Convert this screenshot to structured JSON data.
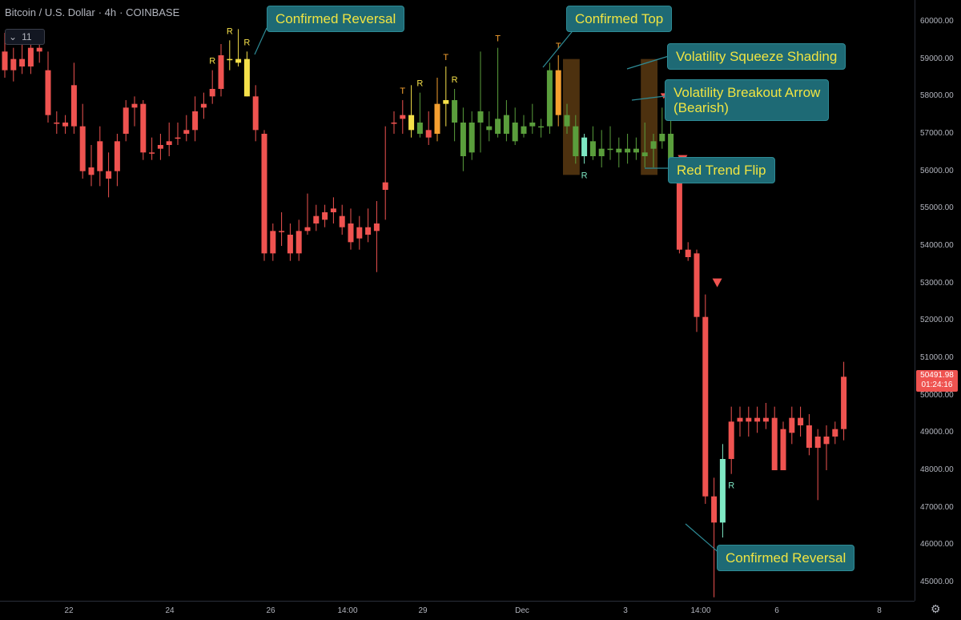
{
  "header": {
    "symbol": "Bitcoin / U.S. Dollar",
    "interval": "4h",
    "exchange": "COINBASE",
    "collapse_count": "11"
  },
  "price_axis": {
    "ticks": [
      "60000.00",
      "59000.00",
      "58000.00",
      "57000.00",
      "56000.00",
      "55000.00",
      "54000.00",
      "53000.00",
      "52000.00",
      "51000.00",
      "50000.00",
      "49000.00",
      "48000.00",
      "47000.00",
      "46000.00",
      "45000.00"
    ],
    "last_price": "50491.98",
    "countdown": "01:24:16"
  },
  "time_axis": {
    "ticks": [
      "22",
      "24",
      "26",
      "14:00",
      "29",
      "Dec",
      "3",
      "14:00",
      "6",
      "8"
    ]
  },
  "annotations": {
    "confirmed_reversal_top": "Confirmed Reversal",
    "confirmed_top": "Confirmed Top",
    "volatility_squeeze": "Volatility Squeeze Shading",
    "volatility_breakout_line1": "Volatility Breakout Arrow",
    "volatility_breakout_line2": "(Bearish)",
    "red_trend_flip": "Red Trend Flip",
    "confirmed_reversal_bottom": "Confirmed Reversal"
  },
  "colors": {
    "up": "#5a9e3c",
    "down": "#ef5350",
    "yellow": "#f5e04a",
    "orange": "#f5a030",
    "cyan": "#7ee8c4",
    "squeeze": "#5a3a12",
    "callout_bg": "#1e6a75",
    "callout_text": "#f0e442"
  },
  "chart_data": {
    "type": "candlestick",
    "title": "Bitcoin / U.S. Dollar",
    "interval": "4h",
    "ylim": [
      44600,
      60600
    ],
    "candles": [
      {
        "x": "22",
        "o": 59200,
        "h": 59700,
        "l": 58500,
        "c": 58700,
        "color": "down"
      },
      {
        "x": "",
        "o": 58700,
        "h": 59300,
        "l": 58400,
        "c": 59000,
        "color": "down"
      },
      {
        "x": "",
        "o": 59000,
        "h": 59400,
        "l": 58600,
        "c": 58800,
        "color": "down"
      },
      {
        "x": "",
        "o": 58800,
        "h": 59500,
        "l": 58600,
        "c": 59300,
        "color": "down"
      },
      {
        "x": "",
        "o": 59300,
        "h": 59600,
        "l": 58900,
        "c": 59200,
        "color": "down"
      },
      {
        "x": "",
        "o": 58700,
        "h": 59200,
        "l": 57300,
        "c": 57500,
        "color": "down"
      },
      {
        "x": "",
        "o": 57300,
        "h": 57600,
        "l": 57000,
        "c": 57300,
        "color": "down"
      },
      {
        "x": "",
        "o": 57300,
        "h": 57500,
        "l": 57000,
        "c": 57200,
        "color": "down"
      },
      {
        "x": "",
        "o": 58300,
        "h": 58900,
        "l": 57000,
        "c": 57200,
        "color": "down"
      },
      {
        "x": "",
        "o": 57200,
        "h": 57800,
        "l": 55800,
        "c": 56000,
        "color": "down"
      },
      {
        "x": "",
        "o": 56100,
        "h": 56700,
        "l": 55600,
        "c": 55900,
        "color": "down"
      },
      {
        "x": "",
        "o": 56800,
        "h": 57200,
        "l": 55600,
        "c": 56000,
        "color": "down"
      },
      {
        "x": "",
        "o": 56000,
        "h": 56500,
        "l": 55300,
        "c": 55800,
        "color": "down"
      },
      {
        "x": "",
        "o": 56800,
        "h": 57000,
        "l": 55600,
        "c": 56000,
        "color": "down"
      },
      {
        "x": "24",
        "o": 57700,
        "h": 57900,
        "l": 56800,
        "c": 57000,
        "color": "down"
      },
      {
        "x": "",
        "o": 57700,
        "h": 58000,
        "l": 57200,
        "c": 57800,
        "color": "down"
      },
      {
        "x": "",
        "o": 57800,
        "h": 57900,
        "l": 56300,
        "c": 56500,
        "color": "down"
      },
      {
        "x": "",
        "o": 56500,
        "h": 56900,
        "l": 56300,
        "c": 56500,
        "color": "down"
      },
      {
        "x": "",
        "o": 56600,
        "h": 57000,
        "l": 56300,
        "c": 56700,
        "color": "down"
      },
      {
        "x": "",
        "o": 56700,
        "h": 57300,
        "l": 56400,
        "c": 56800,
        "color": "down"
      },
      {
        "x": "",
        "o": 56900,
        "h": 57300,
        "l": 56700,
        "c": 56900,
        "color": "down"
      },
      {
        "x": "",
        "o": 57100,
        "h": 57500,
        "l": 56800,
        "c": 57000,
        "color": "down"
      },
      {
        "x": "",
        "o": 57600,
        "h": 58000,
        "l": 56800,
        "c": 57100,
        "color": "down"
      },
      {
        "x": "",
        "o": 57700,
        "h": 58100,
        "l": 57400,
        "c": 57800,
        "color": "down"
      },
      {
        "x": "",
        "o": 58200,
        "h": 58700,
        "l": 57800,
        "c": 58000,
        "color": "down"
      },
      {
        "x": "",
        "o": 59100,
        "h": 59400,
        "l": 58000,
        "c": 58200,
        "color": "down"
      },
      {
        "x": "",
        "o": 59000,
        "h": 59500,
        "l": 58700,
        "c": 59000,
        "color": "yellow"
      },
      {
        "x": "",
        "o": 59000,
        "h": 59800,
        "l": 58800,
        "c": 58900,
        "color": "yellow"
      },
      {
        "x": "26",
        "o": 59000,
        "h": 59200,
        "l": 58000,
        "c": 58000,
        "color": "yellow"
      },
      {
        "x": "",
        "o": 58000,
        "h": 58300,
        "l": 56800,
        "c": 57100,
        "color": "down"
      },
      {
        "x": "",
        "o": 57000,
        "h": 57100,
        "l": 53600,
        "c": 53800,
        "color": "down"
      },
      {
        "x": "",
        "o": 53800,
        "h": 54600,
        "l": 53600,
        "c": 54400,
        "color": "down"
      },
      {
        "x": "",
        "o": 54400,
        "h": 54900,
        "l": 54000,
        "c": 54400,
        "color": "down"
      },
      {
        "x": "",
        "o": 54300,
        "h": 54600,
        "l": 53600,
        "c": 53800,
        "color": "down"
      },
      {
        "x": "",
        "o": 54400,
        "h": 54700,
        "l": 53600,
        "c": 53800,
        "color": "down"
      },
      {
        "x": "",
        "o": 54500,
        "h": 55400,
        "l": 54300,
        "c": 54400,
        "color": "down"
      },
      {
        "x": "14:00",
        "o": 54800,
        "h": 55100,
        "l": 54400,
        "c": 54600,
        "color": "down"
      },
      {
        "x": "",
        "o": 54900,
        "h": 55100,
        "l": 54500,
        "c": 54700,
        "color": "down"
      },
      {
        "x": "",
        "o": 55000,
        "h": 55300,
        "l": 54600,
        "c": 54900,
        "color": "down"
      },
      {
        "x": "",
        "o": 54800,
        "h": 55100,
        "l": 54300,
        "c": 54500,
        "color": "down"
      },
      {
        "x": "",
        "o": 54600,
        "h": 55000,
        "l": 53900,
        "c": 54100,
        "color": "down"
      },
      {
        "x": "",
        "o": 54500,
        "h": 54800,
        "l": 53900,
        "c": 54200,
        "color": "down"
      },
      {
        "x": "",
        "o": 54500,
        "h": 55000,
        "l": 54100,
        "c": 54300,
        "color": "down"
      },
      {
        "x": "",
        "o": 54600,
        "h": 55200,
        "l": 53300,
        "c": 54400,
        "color": "down"
      },
      {
        "x": "",
        "o": 55500,
        "h": 57200,
        "l": 54700,
        "c": 55700,
        "color": "down"
      },
      {
        "x": "29",
        "o": 57300,
        "h": 57600,
        "l": 57000,
        "c": 57300,
        "color": "down"
      },
      {
        "x": "",
        "o": 57400,
        "h": 57900,
        "l": 57000,
        "c": 57500,
        "color": "down"
      },
      {
        "x": "",
        "o": 57500,
        "h": 58300,
        "l": 56900,
        "c": 57100,
        "color": "yellow"
      },
      {
        "x": "",
        "o": 57300,
        "h": 58100,
        "l": 56900,
        "c": 57000,
        "color": "up"
      },
      {
        "x": "",
        "o": 57100,
        "h": 57600,
        "l": 56700,
        "c": 56900,
        "color": "down"
      },
      {
        "x": "",
        "o": 57000,
        "h": 58500,
        "l": 56800,
        "c": 57800,
        "color": "orange"
      },
      {
        "x": "",
        "o": 57800,
        "h": 58800,
        "l": 57200,
        "c": 57900,
        "color": "yellow"
      },
      {
        "x": "",
        "o": 57900,
        "h": 58200,
        "l": 56800,
        "c": 57300,
        "color": "up"
      },
      {
        "x": "",
        "o": 57300,
        "h": 57700,
        "l": 56000,
        "c": 56400,
        "color": "up"
      },
      {
        "x": "",
        "o": 57300,
        "h": 57600,
        "l": 56300,
        "c": 56500,
        "color": "up"
      },
      {
        "x": "",
        "o": 57300,
        "h": 59200,
        "l": 56500,
        "c": 57600,
        "color": "up"
      },
      {
        "x": "",
        "o": 57200,
        "h": 57600,
        "l": 56800,
        "c": 57100,
        "color": "up"
      },
      {
        "x": "",
        "o": 57400,
        "h": 59300,
        "l": 56900,
        "c": 57000,
        "color": "up"
      },
      {
        "x": "",
        "o": 57500,
        "h": 57900,
        "l": 56800,
        "c": 57000,
        "color": "up"
      },
      {
        "x": "",
        "o": 57300,
        "h": 57700,
        "l": 56700,
        "c": 56800,
        "color": "up"
      },
      {
        "x": "",
        "o": 57200,
        "h": 57500,
        "l": 56900,
        "c": 57000,
        "color": "up"
      },
      {
        "x": "",
        "o": 57300,
        "h": 57800,
        "l": 57000,
        "c": 57200,
        "color": "up"
      },
      {
        "x": "",
        "o": 57200,
        "h": 57400,
        "l": 56900,
        "c": 57200,
        "color": "up"
      },
      {
        "x": "Dec",
        "o": 57200,
        "h": 58900,
        "l": 57000,
        "c": 58700,
        "color": "up"
      },
      {
        "x": "",
        "o": 58700,
        "h": 59100,
        "l": 57200,
        "c": 57500,
        "color": "orange"
      },
      {
        "x": "",
        "o": 57500,
        "h": 57800,
        "l": 57000,
        "c": 57200,
        "color": "up"
      },
      {
        "x": "",
        "o": 57200,
        "h": 57500,
        "l": 56200,
        "c": 56400,
        "color": "up"
      },
      {
        "x": "",
        "o": 56400,
        "h": 57000,
        "l": 56200,
        "c": 56900,
        "color": "cyan"
      },
      {
        "x": "",
        "o": 56800,
        "h": 57200,
        "l": 56300,
        "c": 56400,
        "color": "up"
      },
      {
        "x": "",
        "o": 56600,
        "h": 57100,
        "l": 56100,
        "c": 56400,
        "color": "up"
      },
      {
        "x": "",
        "o": 56600,
        "h": 57200,
        "l": 56300,
        "c": 56600,
        "color": "up"
      },
      {
        "x": "",
        "o": 56600,
        "h": 56900,
        "l": 56100,
        "c": 56500,
        "color": "up"
      },
      {
        "x": "",
        "o": 56600,
        "h": 57000,
        "l": 56200,
        "c": 56500,
        "color": "up"
      },
      {
        "x": "",
        "o": 56600,
        "h": 56900,
        "l": 56300,
        "c": 56500,
        "color": "up"
      },
      {
        "x": "",
        "o": 56500,
        "h": 57300,
        "l": 56100,
        "c": 56400,
        "color": "up"
      },
      {
        "x": "3",
        "o": 56600,
        "h": 57000,
        "l": 56100,
        "c": 56800,
        "color": "up"
      },
      {
        "x": "",
        "o": 56800,
        "h": 57700,
        "l": 56600,
        "c": 57000,
        "color": "up"
      },
      {
        "x": "",
        "o": 57000,
        "h": 57700,
        "l": 56000,
        "c": 56000,
        "color": "up"
      },
      {
        "x": "",
        "o": 56000,
        "h": 56200,
        "l": 53800,
        "c": 53900,
        "color": "down"
      },
      {
        "x": "",
        "o": 53900,
        "h": 54100,
        "l": 53600,
        "c": 53700,
        "color": "down"
      },
      {
        "x": "",
        "o": 53800,
        "h": 53900,
        "l": 51700,
        "c": 52100,
        "color": "down"
      },
      {
        "x": "",
        "o": 52100,
        "h": 52700,
        "l": 47100,
        "c": 47300,
        "color": "down"
      },
      {
        "x": "",
        "o": 47300,
        "h": 47800,
        "l": 44600,
        "c": 46600,
        "color": "down"
      },
      {
        "x": "",
        "o": 46600,
        "h": 48700,
        "l": 46200,
        "c": 48300,
        "color": "cyan"
      },
      {
        "x": "14:00",
        "o": 48300,
        "h": 49700,
        "l": 47900,
        "c": 49300,
        "color": "down"
      },
      {
        "x": "",
        "o": 49300,
        "h": 49700,
        "l": 48900,
        "c": 49400,
        "color": "down"
      },
      {
        "x": "",
        "o": 49400,
        "h": 49700,
        "l": 48900,
        "c": 49300,
        "color": "down"
      },
      {
        "x": "",
        "o": 49300,
        "h": 49700,
        "l": 49000,
        "c": 49400,
        "color": "down"
      },
      {
        "x": "",
        "o": 49400,
        "h": 49800,
        "l": 49100,
        "c": 49300,
        "color": "down"
      },
      {
        "x": "",
        "o": 49400,
        "h": 49700,
        "l": 48000,
        "c": 48000,
        "color": "down"
      },
      {
        "x": "",
        "o": 49100,
        "h": 49300,
        "l": 48000,
        "c": 48000,
        "color": "down"
      },
      {
        "x": "",
        "o": 49400,
        "h": 49700,
        "l": 48700,
        "c": 49000,
        "color": "down"
      },
      {
        "x": "",
        "o": 49400,
        "h": 49700,
        "l": 48900,
        "c": 49200,
        "color": "down"
      },
      {
        "x": "6",
        "o": 49200,
        "h": 49500,
        "l": 48400,
        "c": 48600,
        "color": "down"
      },
      {
        "x": "",
        "o": 48900,
        "h": 49100,
        "l": 47200,
        "c": 48600,
        "color": "down"
      },
      {
        "x": "",
        "o": 48700,
        "h": 49200,
        "l": 48000,
        "c": 48900,
        "color": "down"
      },
      {
        "x": "",
        "o": 48900,
        "h": 49300,
        "l": 48700,
        "c": 49100,
        "color": "down"
      },
      {
        "x": "",
        "o": 49100,
        "h": 50900,
        "l": 48800,
        "c": 50500,
        "color": "down"
      }
    ],
    "signals": [
      {
        "idx": 26,
        "label": "R",
        "kind": "reversal",
        "pos": "above"
      },
      {
        "idx": 28,
        "label": "R",
        "kind": "reversal",
        "pos": "above"
      },
      {
        "idx": 24,
        "label": "R",
        "kind": "reversal",
        "pos": "above"
      },
      {
        "idx": 46,
        "label": "T",
        "kind": "top",
        "pos": "above"
      },
      {
        "idx": 48,
        "label": "R",
        "kind": "reversal",
        "pos": "above"
      },
      {
        "idx": 51,
        "label": "T",
        "kind": "top",
        "pos": "above"
      },
      {
        "idx": 52,
        "label": "R",
        "kind": "reversal",
        "pos": "above"
      },
      {
        "idx": 57,
        "label": "T",
        "kind": "top",
        "pos": "above"
      },
      {
        "idx": 64,
        "label": "T",
        "kind": "top",
        "pos": "above"
      },
      {
        "idx": 67,
        "label": "R",
        "kind": "reversal-bull",
        "pos": "below"
      },
      {
        "idx": 84,
        "label": "R",
        "kind": "reversal-bull",
        "pos": "below"
      }
    ],
    "squeeze_zones": [
      {
        "from": 65,
        "to": 66
      },
      {
        "from": 74,
        "to": 75
      }
    ],
    "trend_flip_arrows": [
      {
        "idx": 78,
        "price": 56300
      },
      {
        "idx": 82,
        "price": 53000
      }
    ],
    "breakout_arrow": {
      "idx": 76,
      "price": 58000
    }
  }
}
